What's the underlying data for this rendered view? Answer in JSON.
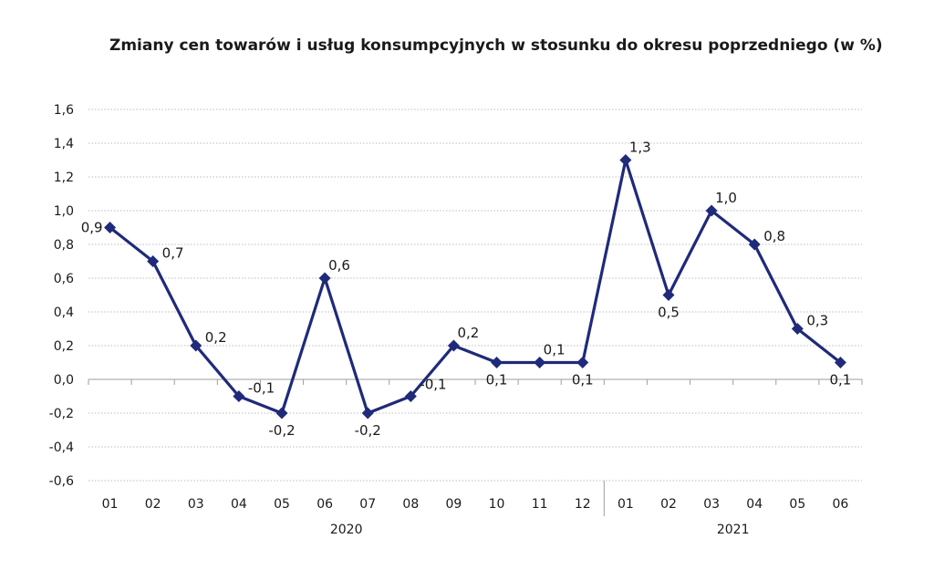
{
  "chart_data": {
    "type": "line",
    "title": "Zmiany cen towarów i usług konsumpcyjnych w stosunku do okresu poprzedniego (w %)",
    "xlabel": "",
    "ylabel": "",
    "categories": [
      "01",
      "02",
      "03",
      "04",
      "05",
      "06",
      "07",
      "08",
      "09",
      "10",
      "11",
      "12",
      "01",
      "02",
      "03",
      "04",
      "05",
      "06"
    ],
    "groups": [
      {
        "label": "2020",
        "count": 12
      },
      {
        "label": "2021",
        "count": 6
      }
    ],
    "series": [
      {
        "values": [
          0.9,
          0.7,
          0.2,
          -0.1,
          -0.2,
          0.6,
          -0.2,
          -0.1,
          0.2,
          0.1,
          0.1,
          0.1,
          1.3,
          0.5,
          1.0,
          0.8,
          0.3,
          0.1
        ],
        "data_labels": [
          "0,9",
          "0,7",
          "0,2",
          "-0,1",
          "-0,2",
          "0,6",
          "-0,2",
          "-0,1",
          "0,2",
          "0,1",
          "0,1",
          "0,1",
          "1,3",
          "0,5",
          "1,0",
          "0,8",
          "0,3",
          "0,1"
        ],
        "color": "#1f2a7a"
      }
    ],
    "ylim": [
      -0.6,
      1.6
    ],
    "yticks": [
      1.6,
      1.4,
      1.2,
      1.0,
      0.8,
      0.6,
      0.4,
      0.2,
      0.0,
      -0.2,
      -0.4,
      -0.6
    ],
    "ytick_labels": [
      "1,6",
      "1,4",
      "1,2",
      "1,0",
      "0,8",
      "0,6",
      "0,4",
      "0,2",
      "0,0",
      "-0,2",
      "-0,4",
      "-0,6"
    ],
    "grid": true,
    "gridline_style": "dotted",
    "legend": "none",
    "marker": "diamond"
  }
}
